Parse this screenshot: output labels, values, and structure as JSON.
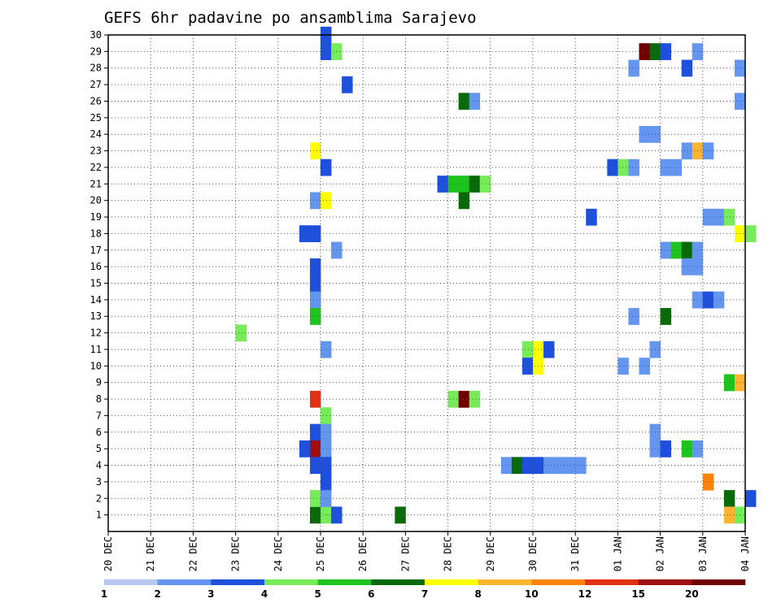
{
  "chart_data": {
    "type": "heatmap",
    "title": "GEFS 6hr padavine po ansamblima Sarajevo",
    "xlabel": "",
    "ylabel": "",
    "x_ticks": [
      "20 DEC",
      "21 DEC",
      "22 DEC",
      "23 DEC",
      "24 DEC",
      "25 DEC",
      "26 DEC",
      "27 DEC",
      "28 DEC",
      "29 DEC",
      "30 DEC",
      "31 DEC",
      "01 JAN",
      "02 JAN",
      "03 JAN",
      "04 JAN"
    ],
    "x_range": [
      0,
      15
    ],
    "y_ticks": [
      1,
      2,
      3,
      4,
      5,
      6,
      7,
      8,
      9,
      10,
      11,
      12,
      13,
      14,
      15,
      16,
      17,
      18,
      19,
      20,
      21,
      22,
      23,
      24,
      25,
      26,
      27,
      28,
      29,
      30
    ],
    "y_range": [
      0,
      30
    ],
    "grid": true,
    "colorbar": {
      "labels": [
        "1",
        "2",
        "3",
        "4",
        "5",
        "6",
        "7",
        "8",
        "10",
        "12",
        "15",
        "20"
      ],
      "colors": [
        "#b4c8f0",
        "#6496ef",
        "#1e50dc",
        "#78eb5a",
        "#1ec31e",
        "#0a690a",
        "#ffff00",
        "#ffb432",
        "#ff820a",
        "#e13214",
        "#a00f0f",
        "#6e0000"
      ]
    },
    "cells": [
      [
        24.75,
        1,
        5
      ],
      [
        25.0,
        1,
        3
      ],
      [
        25.25,
        1,
        2
      ],
      [
        26.75,
        1,
        5
      ],
      [
        25.0,
        30,
        2
      ],
      [
        25.0,
        29,
        2
      ],
      [
        25.25,
        29,
        3
      ],
      [
        32.5,
        29,
        11
      ],
      [
        32.75,
        29,
        5
      ],
      [
        33.0,
        29,
        2
      ],
      [
        33.75,
        29,
        1
      ],
      [
        32.25,
        28,
        1
      ],
      [
        33.5,
        28,
        2
      ],
      [
        34.75,
        28,
        1
      ],
      [
        25.5,
        27,
        2
      ],
      [
        28.25,
        26,
        5
      ],
      [
        28.5,
        26,
        1
      ],
      [
        34.75,
        26,
        1
      ],
      [
        32.5,
        24,
        1
      ],
      [
        32.75,
        24,
        1
      ],
      [
        24.75,
        23,
        6
      ],
      [
        33.5,
        23,
        1
      ],
      [
        33.75,
        23,
        7
      ],
      [
        34.0,
        23,
        1
      ],
      [
        25.0,
        22,
        2
      ],
      [
        31.75,
        22,
        2
      ],
      [
        32.0,
        22,
        3
      ],
      [
        32.25,
        22,
        1
      ],
      [
        33.0,
        22,
        1
      ],
      [
        33.25,
        22,
        1
      ],
      [
        27.75,
        21,
        2
      ],
      [
        28.0,
        21,
        4
      ],
      [
        28.25,
        21,
        4
      ],
      [
        28.5,
        21,
        5
      ],
      [
        28.75,
        21,
        3
      ],
      [
        24.75,
        20,
        1
      ],
      [
        25.0,
        20,
        6
      ],
      [
        28.25,
        20,
        5
      ],
      [
        31.25,
        19,
        2
      ],
      [
        34.0,
        19,
        1
      ],
      [
        34.25,
        19,
        1
      ],
      [
        34.5,
        19,
        3
      ],
      [
        24.5,
        18,
        2
      ],
      [
        24.75,
        18,
        2
      ],
      [
        34.75,
        18,
        6
      ],
      [
        35.0,
        18,
        3
      ],
      [
        25.25,
        17,
        1
      ],
      [
        33.0,
        17,
        1
      ],
      [
        33.25,
        17,
        4
      ],
      [
        33.5,
        17,
        5
      ],
      [
        33.75,
        17,
        1
      ],
      [
        24.75,
        16,
        2
      ],
      [
        33.5,
        16,
        1
      ],
      [
        33.75,
        16,
        1
      ],
      [
        24.75,
        15,
        2
      ],
      [
        24.75,
        14,
        1
      ],
      [
        33.75,
        14,
        1
      ],
      [
        34.0,
        14,
        2
      ],
      [
        34.25,
        14,
        1
      ],
      [
        24.75,
        13,
        4
      ],
      [
        32.25,
        13,
        1
      ],
      [
        33.0,
        13,
        5
      ],
      [
        23.0,
        12,
        3
      ],
      [
        25.0,
        11,
        1
      ],
      [
        29.75,
        11,
        3
      ],
      [
        30.0,
        11,
        6
      ],
      [
        30.25,
        11,
        2
      ],
      [
        32.75,
        11,
        1
      ],
      [
        29.75,
        10,
        2
      ],
      [
        30.0,
        10,
        6
      ],
      [
        32.0,
        10,
        1
      ],
      [
        32.5,
        10,
        1
      ],
      [
        34.5,
        9,
        4
      ],
      [
        34.75,
        9,
        7
      ],
      [
        24.75,
        8,
        9
      ],
      [
        28.0,
        8,
        3
      ],
      [
        28.25,
        8,
        11
      ],
      [
        28.5,
        8,
        3
      ],
      [
        25.0,
        7,
        3
      ],
      [
        24.75,
        6,
        2
      ],
      [
        25.0,
        6,
        1
      ],
      [
        32.75,
        6,
        1
      ],
      [
        24.5,
        5,
        2
      ],
      [
        24.75,
        5,
        10
      ],
      [
        25.0,
        5,
        1
      ],
      [
        32.75,
        5,
        1
      ],
      [
        33.0,
        5,
        2
      ],
      [
        33.5,
        5,
        4
      ],
      [
        33.75,
        5,
        1
      ],
      [
        24.75,
        4,
        2
      ],
      [
        25.0,
        4,
        2
      ],
      [
        29.25,
        4,
        1
      ],
      [
        29.5,
        4,
        5
      ],
      [
        29.75,
        4,
        2
      ],
      [
        30.0,
        4,
        2
      ],
      [
        30.25,
        4,
        1
      ],
      [
        30.5,
        4,
        1
      ],
      [
        30.75,
        4,
        1
      ],
      [
        31.0,
        4,
        1
      ],
      [
        25.0,
        3,
        2
      ],
      [
        34.0,
        3,
        8
      ],
      [
        24.75,
        2,
        3
      ],
      [
        25.0,
        2,
        1
      ],
      [
        34.5,
        2,
        5
      ],
      [
        35.0,
        2,
        2
      ],
      [
        34.5,
        1,
        7
      ],
      [
        34.75,
        1,
        3
      ]
    ]
  }
}
